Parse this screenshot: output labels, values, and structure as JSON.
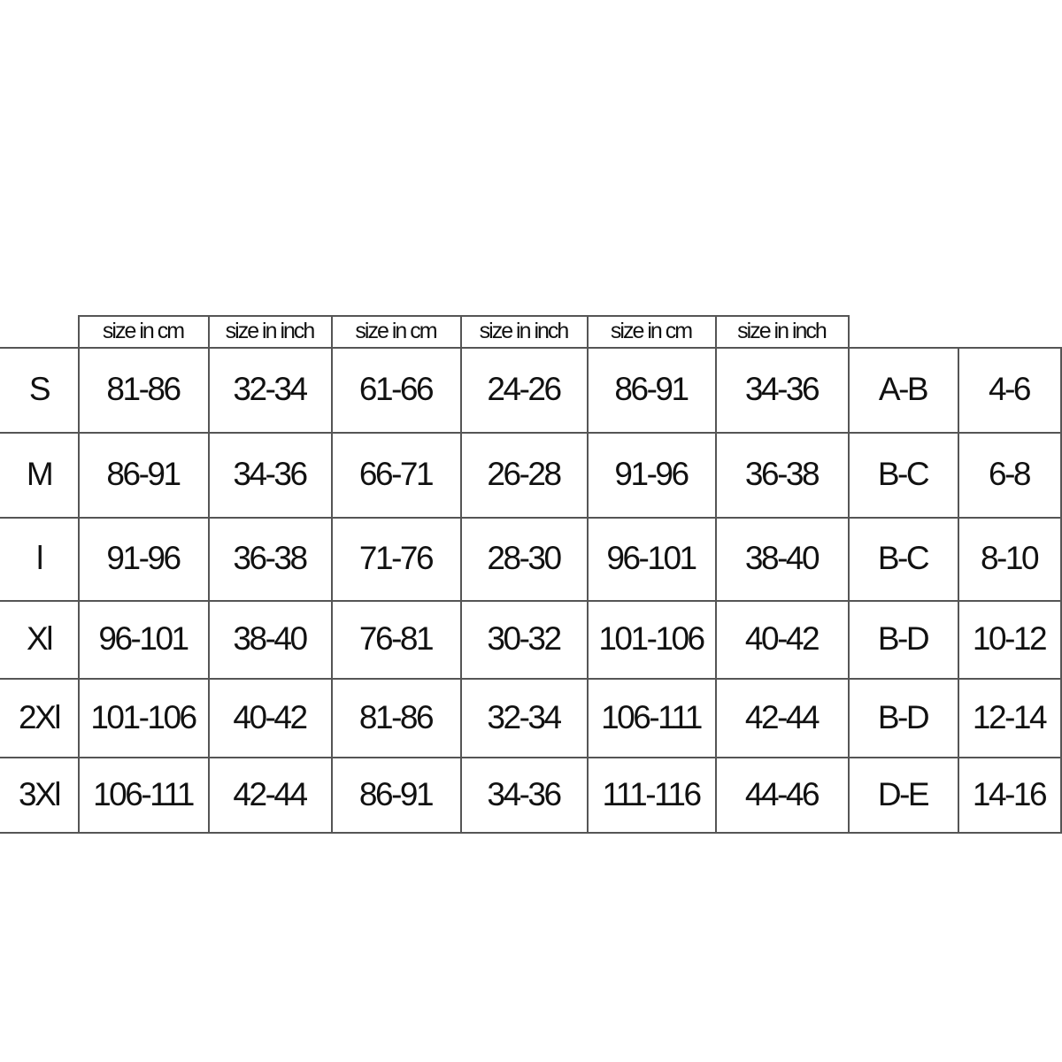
{
  "header": [
    "size in cm",
    "size in inch",
    "size in cm",
    "size in inch",
    "size in cm",
    "size in inch"
  ],
  "rows": [
    {
      "size": "S",
      "values": [
        "81-86",
        "32-34",
        "61-66",
        "24-26",
        "86-91",
        "34-36",
        "A-B",
        "4-6"
      ]
    },
    {
      "size": "M",
      "values": [
        "86-91",
        "34-36",
        "66-71",
        "26-28",
        "91-96",
        "36-38",
        "B-C",
        "6-8"
      ]
    },
    {
      "size": "l",
      "values": [
        "91-96",
        "36-38",
        "71-76",
        "28-30",
        "96-101",
        "38-40",
        "B-C",
        "8-10"
      ]
    },
    {
      "size": "Xl",
      "values": [
        "96-101",
        "38-40",
        "76-81",
        "30-32",
        "101-106",
        "40-42",
        "B-D",
        "10-12"
      ]
    },
    {
      "size": "2Xl",
      "values": [
        "101-106",
        "40-42",
        "81-86",
        "32-34",
        "106-111",
        "42-44",
        "B-D",
        "12-14"
      ]
    },
    {
      "size": "3Xl",
      "values": [
        "106-111",
        "42-44",
        "86-91",
        "34-36",
        "111-116",
        "44-46",
        "D-E",
        "14-16"
      ]
    }
  ]
}
